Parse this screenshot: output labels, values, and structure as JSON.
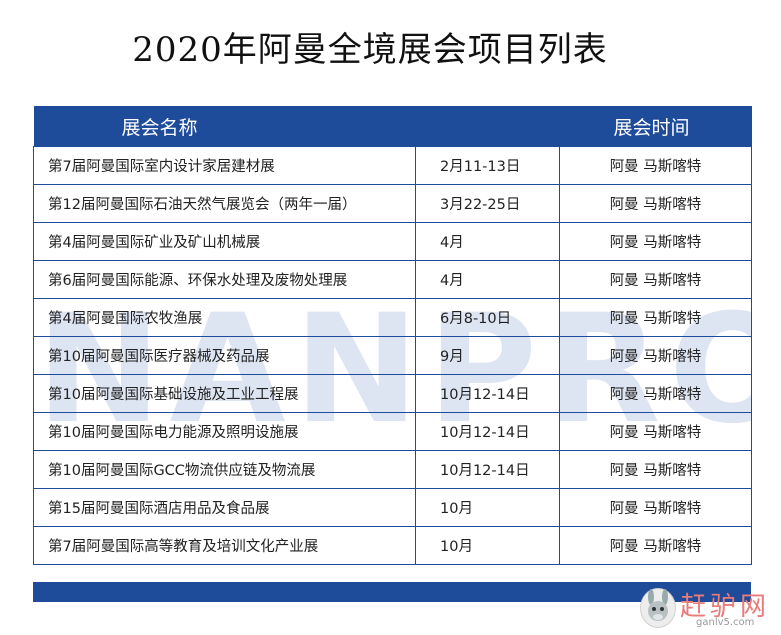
{
  "title": "2020年阿曼全境展会项目列表",
  "header": {
    "name": "展会名称",
    "time": "展会时间"
  },
  "rows": [
    {
      "name": "第7届阿曼国际室内设计家居建材展",
      "date": "2月11-13日",
      "location": "阿曼 马斯喀特"
    },
    {
      "name": "第12届阿曼国际石油天然气展览会（两年一届）",
      "date": "3月22-25日",
      "location": "阿曼 马斯喀特"
    },
    {
      "name": "第4届阿曼国际矿业及矿山机械展",
      "date": "4月",
      "location": "阿曼 马斯喀特"
    },
    {
      "name": "第6届阿曼国际能源、环保水处理及废物处理展",
      "date": "4月",
      "location": "阿曼 马斯喀特"
    },
    {
      "name": "第4届阿曼国际农牧渔展",
      "date": "6月8-10日",
      "location": "阿曼 马斯喀特"
    },
    {
      "name": "第10届阿曼国际医疗器械及药品展",
      "date": "9月",
      "location": "阿曼 马斯喀特"
    },
    {
      "name": "第10届阿曼国际基础设施及工业工程展",
      "date": "10月12-14日",
      "location": "阿曼 马斯喀特"
    },
    {
      "name": "第10届阿曼国际电力能源及照明设施展",
      "date": "10月12-14日",
      "location": "阿曼 马斯喀特"
    },
    {
      "name": "第10届阿曼国际GCC物流供应链及物流展",
      "date": "10月12-14日",
      "location": "阿曼 马斯喀特"
    },
    {
      "name": "第15届阿曼国际酒店用品及食品展",
      "date": "10月",
      "location": "阿曼 马斯喀特"
    },
    {
      "name": "第7届阿曼国际高等教育及培训文化产业展",
      "date": "10月",
      "location": "阿曼 马斯喀特"
    }
  ],
  "watermark": "NANPRO",
  "logo": {
    "text": "赶驴网",
    "url": "ganlv5.com",
    "icon": "donkey-mascot-icon"
  },
  "colors": {
    "header_bg": "#1f4b9b",
    "border": "#1f4b9b",
    "watermark": "#c8d3ea",
    "logo_text": "#e97b78"
  }
}
